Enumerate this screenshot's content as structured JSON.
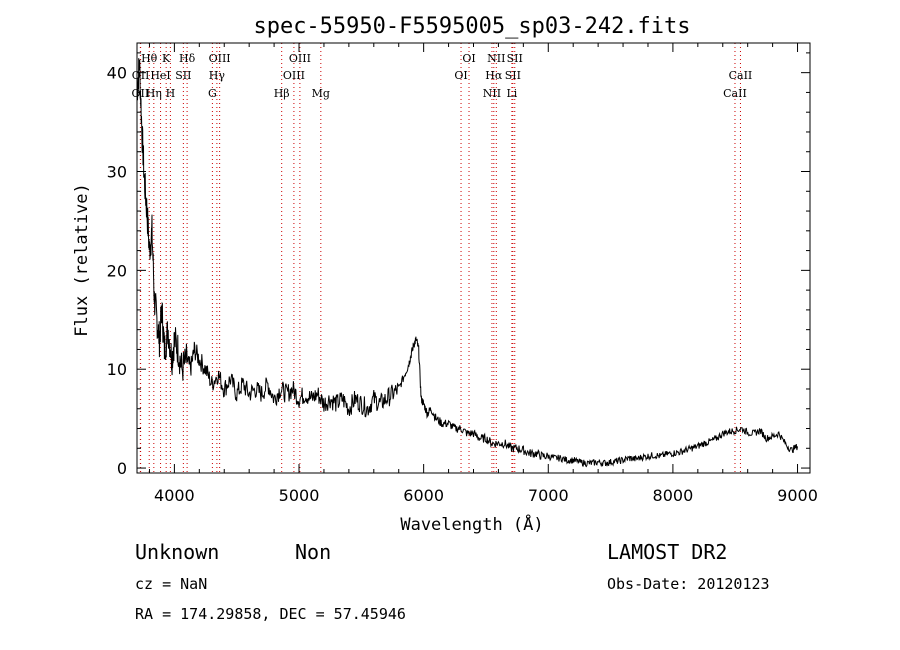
{
  "chart_data": {
    "type": "line",
    "title": "spec-55950-F5595005_sp03-242.fits",
    "xlabel": "Wavelength (Å)",
    "ylabel": "Flux (relative)",
    "xlim": [
      3700,
      9100
    ],
    "ylim": [
      -0.5,
      43
    ],
    "x_ticks": [
      4000,
      5000,
      6000,
      7000,
      8000,
      9000
    ],
    "y_ticks": [
      0,
      10,
      20,
      30,
      40
    ],
    "grid": false,
    "series": [
      {
        "x": [
          3700,
          3720,
          3740,
          3760,
          3780,
          3800,
          3820,
          3840,
          3860,
          3880,
          3900,
          3920,
          3950,
          3980,
          4000,
          4030,
          4060,
          4100,
          4130,
          4160,
          4200,
          4250,
          4300,
          4350,
          4400,
          4450,
          4500,
          4550,
          4600,
          4650,
          4700,
          4750,
          4800,
          4850,
          4900,
          4950,
          5000,
          5050,
          5100,
          5150,
          5200,
          5250,
          5300,
          5350,
          5400,
          5450,
          5500,
          5550,
          5600,
          5650,
          5700,
          5750,
          5800,
          5850,
          5880,
          5900,
          5920,
          5940,
          5960,
          5980,
          6000,
          6030,
          6060,
          6100,
          6150,
          6200,
          6250,
          6300,
          6350,
          6400,
          6450,
          6500,
          6550,
          6600,
          6650,
          6700,
          6750,
          6800,
          6850,
          6900,
          6950,
          7000,
          7050,
          7100,
          7150,
          7200,
          7250,
          7300,
          7350,
          7400,
          7450,
          7500,
          7550,
          7600,
          7650,
          7700,
          7750,
          7800,
          7850,
          7900,
          7950,
          8000,
          8050,
          8100,
          8150,
          8200,
          8250,
          8300,
          8350,
          8400,
          8450,
          8500,
          8550,
          8600,
          8650,
          8700,
          8750,
          8800,
          8850,
          8900,
          8950,
          9000
        ],
        "y": [
          38,
          41,
          34,
          29,
          26,
          22,
          24,
          17,
          15,
          13,
          16,
          12,
          14,
          11,
          13,
          12,
          10,
          11,
          10,
          12,
          11,
          10,
          8.5,
          9.5,
          8,
          9,
          7.5,
          8.5,
          7.5,
          8,
          7.5,
          8.5,
          7,
          8,
          7.5,
          8,
          7,
          7.5,
          7,
          7.5,
          6.5,
          7,
          6.5,
          7,
          6,
          7,
          6.5,
          6,
          7,
          6.5,
          7,
          7.5,
          8,
          9.5,
          10.5,
          11.5,
          12.5,
          13,
          12,
          7,
          6.5,
          5.5,
          6,
          5,
          4.5,
          4.5,
          4,
          4,
          3.5,
          3.5,
          3,
          3,
          2.5,
          2.5,
          2.5,
          2,
          2,
          1.8,
          1.5,
          1.5,
          1.2,
          1.2,
          1,
          1,
          0.8,
          0.8,
          0.6,
          0.5,
          0.5,
          0.6,
          0.5,
          0.6,
          0.7,
          0.8,
          1,
          0.9,
          1.1,
          1.2,
          1.3,
          1.2,
          1.4,
          1.5,
          1.6,
          1.8,
          2,
          2.2,
          2.5,
          2.7,
          3,
          3.5,
          3.7,
          3.8,
          4,
          3.6,
          3.5,
          3.8,
          3,
          3.2,
          3.5,
          2.5,
          1.8,
          2.2
        ]
      }
    ],
    "spectral_lines": [
      {
        "name": "OII",
        "wavelength": 3727,
        "row": 3
      },
      {
        "name": "OII",
        "wavelength": 3729,
        "row": 2
      },
      {
        "name": "Hθ",
        "wavelength": 3798,
        "row": 1
      },
      {
        "name": "Hη",
        "wavelength": 3835,
        "row": 3
      },
      {
        "name": "HeI",
        "wavelength": 3889,
        "row": 2
      },
      {
        "name": "K",
        "wavelength": 3934,
        "row": 1
      },
      {
        "name": "H",
        "wavelength": 3968,
        "row": 3
      },
      {
        "name": "SII",
        "wavelength": 4072,
        "row": 2
      },
      {
        "name": "Hδ",
        "wavelength": 4102,
        "row": 1
      },
      {
        "name": "G",
        "wavelength": 4305,
        "row": 3
      },
      {
        "name": "Hγ",
        "wavelength": 4341,
        "row": 2
      },
      {
        "name": "OIII",
        "wavelength": 4363,
        "row": 1
      },
      {
        "name": "Hβ",
        "wavelength": 4861,
        "row": 3
      },
      {
        "name": "OIII",
        "wavelength": 4959,
        "row": 2
      },
      {
        "name": "OIII",
        "wavelength": 5007,
        "row": 1
      },
      {
        "name": "Mg",
        "wavelength": 5175,
        "row": 3
      },
      {
        "name": "OI",
        "wavelength": 6300,
        "row": 2
      },
      {
        "name": "OI",
        "wavelength": 6364,
        "row": 1
      },
      {
        "name": "NII",
        "wavelength": 6548,
        "row": 3
      },
      {
        "name": "Hα",
        "wavelength": 6563,
        "row": 2
      },
      {
        "name": "NII",
        "wavelength": 6583,
        "row": 1
      },
      {
        "name": "Li",
        "wavelength": 6708,
        "row": 3
      },
      {
        "name": "SII",
        "wavelength": 6716,
        "row": 2
      },
      {
        "name": "SII",
        "wavelength": 6731,
        "row": 1
      },
      {
        "name": "CaII",
        "wavelength": 8498,
        "row": 3
      },
      {
        "name": "CaII",
        "wavelength": 8542,
        "row": 2
      }
    ]
  },
  "info": {
    "class": "Unknown",
    "subclass": "Non",
    "survey": "LAMOST DR2",
    "cz": "cz = NaN",
    "obs_date": "Obs-Date: 20120123",
    "coords": "RA = 174.29858, DEC =  57.45946"
  },
  "colors": {
    "line_marker": "#cc0000",
    "spectrum": "#000000"
  }
}
